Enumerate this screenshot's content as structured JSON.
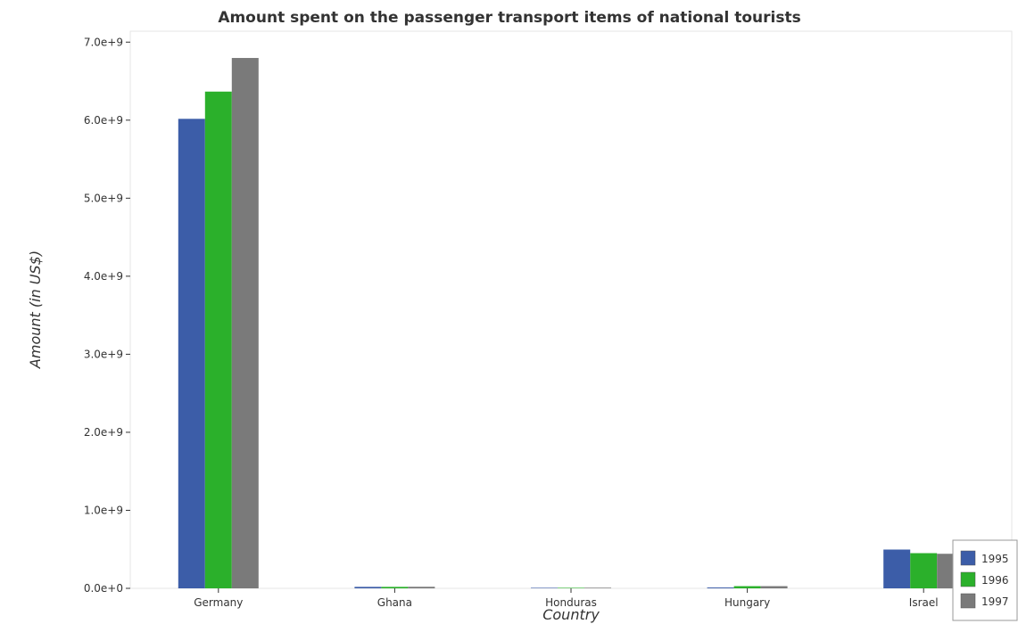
{
  "chart_data": {
    "type": "bar",
    "title": "Amount spent on the passenger transport items of national tourists",
    "xlabel": "Country",
    "ylabel": "Amount (in US$)",
    "categories": [
      "Germany",
      "Ghana",
      "Honduras",
      "Hungary",
      "Israel"
    ],
    "series": [
      {
        "name": "1995",
        "color": "#3c5da8",
        "values": [
          6017000000,
          19000000,
          5000000,
          11000000,
          497000000
        ]
      },
      {
        "name": "1996",
        "color": "#2bb02b",
        "values": [
          6366000000,
          19000000,
          5000000,
          28000000,
          451000000
        ]
      },
      {
        "name": "1997",
        "color": "#7a7a7a",
        "values": [
          6797000000,
          20000000,
          8000000,
          28000000,
          443000000
        ]
      }
    ],
    "yticks": [
      0,
      1000000000,
      2000000000,
      3000000000,
      4000000000,
      5000000000,
      6000000000,
      7000000000
    ],
    "ytick_labels": [
      "0.0e+0",
      "1.0e+9",
      "2.0e+9",
      "3.0e+9",
      "4.0e+9",
      "5.0e+9",
      "6.0e+9",
      "7.0e+9"
    ],
    "ylim": [
      0,
      7140000000
    ],
    "grid": false,
    "legend_position": "bottom-right"
  }
}
